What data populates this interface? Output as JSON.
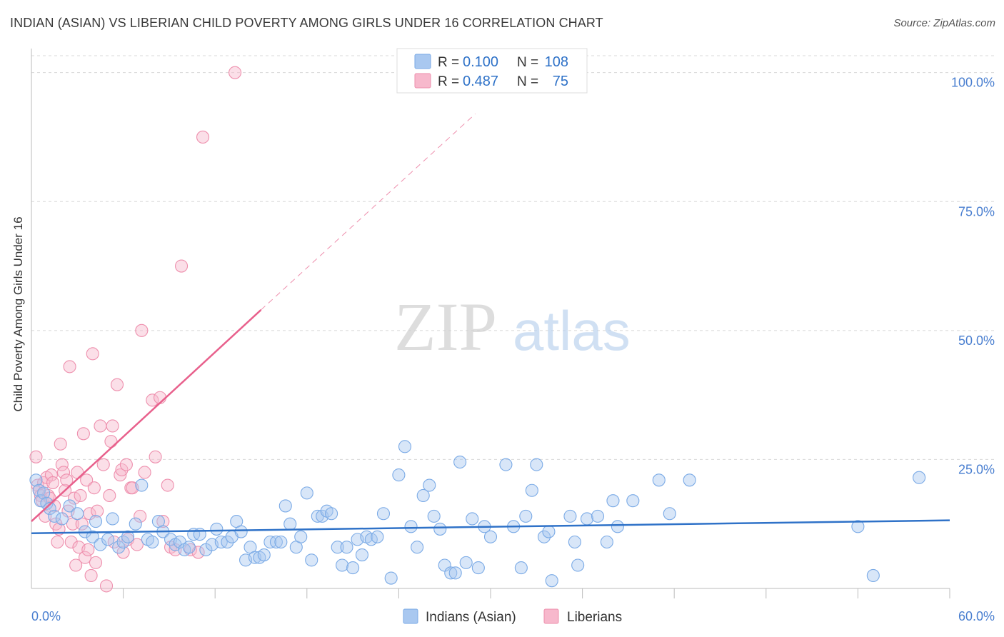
{
  "title": "INDIAN (ASIAN) VS LIBERIAN CHILD POVERTY AMONG GIRLS UNDER 16 CORRELATION CHART",
  "source": "Source: ZipAtlas.com",
  "watermark": {
    "zip": "ZIP",
    "atlas": "atlas"
  },
  "colors": {
    "indians_fill": "#a9c8f0",
    "indians_stroke": "#7aaae6",
    "indians_line": "#2f72c8",
    "liberians_fill": "#f7b8cc",
    "liberians_stroke": "#ee8fad",
    "liberians_line": "#e8608c",
    "tick_label": "#4a7fd0",
    "grid": "#d8d8d8"
  },
  "legend": {
    "r_label": "R =",
    "n_label": "N =",
    "rows": [
      {
        "r": "0.100",
        "n": "108"
      },
      {
        "r": "0.487",
        "n": "75"
      }
    ]
  },
  "chart_data": {
    "type": "scatter",
    "title": "INDIAN (ASIAN) VS LIBERIAN CHILD POVERTY AMONG GIRLS UNDER 16 CORRELATION CHART",
    "xlabel": "",
    "ylabel": "Child Poverty Among Girls Under 16",
    "xlim": [
      0,
      60
    ],
    "ylim": [
      0,
      103
    ],
    "x_tick_labels": [
      "0.0%",
      "60.0%"
    ],
    "y_ticks": [
      25,
      50,
      75,
      100
    ],
    "y_tick_labels": [
      "25.0%",
      "50.0%",
      "75.0%",
      "100.0%"
    ],
    "grid": true,
    "legend_position": "top-center",
    "series": [
      {
        "name": "Indians (Asian)",
        "r": 0.1,
        "n": 108,
        "trend": {
          "x": [
            0,
            60
          ],
          "y": [
            10.7,
            13.2
          ]
        },
        "points": [
          [
            0.3,
            21
          ],
          [
            0.5,
            19
          ],
          [
            0.6,
            17
          ],
          [
            0.8,
            18.5
          ],
          [
            1.0,
            16.5
          ],
          [
            1.2,
            15.5
          ],
          [
            1.5,
            14
          ],
          [
            2.0,
            13.5
          ],
          [
            2.5,
            16
          ],
          [
            3.0,
            14.5
          ],
          [
            3.5,
            11
          ],
          [
            4.0,
            10
          ],
          [
            4.2,
            13
          ],
          [
            4.5,
            8.5
          ],
          [
            5.0,
            9.5
          ],
          [
            5.3,
            13.5
          ],
          [
            5.7,
            8
          ],
          [
            6.0,
            9
          ],
          [
            6.3,
            10
          ],
          [
            6.8,
            12.5
          ],
          [
            7.2,
            20
          ],
          [
            7.6,
            9.5
          ],
          [
            7.9,
            9
          ],
          [
            8.3,
            13
          ],
          [
            8.6,
            11
          ],
          [
            9.1,
            9.5
          ],
          [
            9.4,
            8.5
          ],
          [
            9.7,
            9
          ],
          [
            10.0,
            7.5
          ],
          [
            10.3,
            8
          ],
          [
            10.6,
            10.5
          ],
          [
            11.0,
            10.5
          ],
          [
            11.4,
            7.5
          ],
          [
            11.8,
            8.5
          ],
          [
            12.1,
            11.5
          ],
          [
            12.4,
            9
          ],
          [
            12.8,
            9
          ],
          [
            13.1,
            10
          ],
          [
            13.4,
            13
          ],
          [
            13.7,
            11
          ],
          [
            14.0,
            5.5
          ],
          [
            14.3,
            8
          ],
          [
            14.6,
            6
          ],
          [
            14.9,
            6
          ],
          [
            15.2,
            6.5
          ],
          [
            15.6,
            9
          ],
          [
            16.0,
            9
          ],
          [
            16.3,
            9
          ],
          [
            16.6,
            16
          ],
          [
            16.9,
            12.5
          ],
          [
            17.3,
            8
          ],
          [
            17.6,
            10
          ],
          [
            18.0,
            18.5
          ],
          [
            18.3,
            5.5
          ],
          [
            18.7,
            14
          ],
          [
            19.0,
            14
          ],
          [
            19.3,
            15
          ],
          [
            19.6,
            14.5
          ],
          [
            20.0,
            8
          ],
          [
            20.3,
            4.5
          ],
          [
            20.6,
            8
          ],
          [
            21.0,
            4
          ],
          [
            21.3,
            9.5
          ],
          [
            21.6,
            6.5
          ],
          [
            21.9,
            10
          ],
          [
            22.2,
            9.5
          ],
          [
            22.6,
            10
          ],
          [
            23.0,
            14.5
          ],
          [
            23.5,
            2
          ],
          [
            24.0,
            22
          ],
          [
            24.4,
            27.5
          ],
          [
            24.8,
            12
          ],
          [
            25.2,
            8
          ],
          [
            25.6,
            18
          ],
          [
            26.0,
            20
          ],
          [
            26.3,
            14
          ],
          [
            26.7,
            11.5
          ],
          [
            27.0,
            4.5
          ],
          [
            27.4,
            3
          ],
          [
            27.7,
            3
          ],
          [
            28.0,
            24.5
          ],
          [
            28.4,
            5
          ],
          [
            28.8,
            13.5
          ],
          [
            29.2,
            4
          ],
          [
            29.6,
            12
          ],
          [
            30.0,
            10
          ],
          [
            31.0,
            24
          ],
          [
            31.5,
            12
          ],
          [
            32.0,
            4
          ],
          [
            32.3,
            14
          ],
          [
            32.7,
            19
          ],
          [
            33.0,
            24
          ],
          [
            33.5,
            10
          ],
          [
            33.8,
            11
          ],
          [
            34.0,
            1.5
          ],
          [
            35.2,
            14
          ],
          [
            35.5,
            9
          ],
          [
            35.7,
            4.5
          ],
          [
            36.3,
            13.5
          ],
          [
            37.0,
            14
          ],
          [
            37.6,
            9
          ],
          [
            38.0,
            17
          ],
          [
            38.3,
            12
          ],
          [
            39.3,
            17
          ],
          [
            41.0,
            21
          ],
          [
            41.7,
            14.5
          ],
          [
            43.0,
            21
          ],
          [
            54.0,
            12
          ],
          [
            55.0,
            2.5
          ],
          [
            58.0,
            21.5
          ]
        ]
      },
      {
        "name": "Liberians",
        "r": 0.487,
        "n": 75,
        "trend": {
          "x": [
            0,
            15
          ],
          "y": [
            13,
            54
          ]
        },
        "trend_extended": {
          "x": [
            15,
            29
          ],
          "y": [
            54,
            92
          ]
        },
        "points": [
          [
            0.3,
            25.5
          ],
          [
            0.4,
            20
          ],
          [
            0.5,
            19
          ],
          [
            0.6,
            18
          ],
          [
            0.7,
            17
          ],
          [
            0.8,
            20.5
          ],
          [
            0.9,
            14
          ],
          [
            1.0,
            21.5
          ],
          [
            1.1,
            18
          ],
          [
            1.2,
            17.5
          ],
          [
            1.3,
            22
          ],
          [
            1.4,
            20.5
          ],
          [
            1.5,
            16
          ],
          [
            1.6,
            12.5
          ],
          [
            1.7,
            9
          ],
          [
            1.8,
            11.5
          ],
          [
            1.9,
            28
          ],
          [
            2.0,
            24
          ],
          [
            2.1,
            22.5
          ],
          [
            2.2,
            19
          ],
          [
            2.3,
            21
          ],
          [
            2.4,
            15
          ],
          [
            2.5,
            43
          ],
          [
            2.6,
            9
          ],
          [
            2.7,
            12.5
          ],
          [
            2.8,
            17.5
          ],
          [
            2.9,
            4.5
          ],
          [
            3.0,
            22.5
          ],
          [
            3.1,
            8
          ],
          [
            3.2,
            18
          ],
          [
            3.3,
            12.5
          ],
          [
            3.4,
            30
          ],
          [
            3.5,
            6
          ],
          [
            3.6,
            21
          ],
          [
            3.7,
            7.5
          ],
          [
            3.8,
            14.5
          ],
          [
            3.9,
            2.5
          ],
          [
            4.0,
            45.5
          ],
          [
            4.1,
            19.5
          ],
          [
            4.2,
            5
          ],
          [
            4.3,
            15
          ],
          [
            4.5,
            31.5
          ],
          [
            4.7,
            24
          ],
          [
            4.9,
            0.5
          ],
          [
            5.1,
            18
          ],
          [
            5.2,
            28.5
          ],
          [
            5.3,
            31.5
          ],
          [
            5.4,
            9
          ],
          [
            5.6,
            39.5
          ],
          [
            5.8,
            22
          ],
          [
            5.9,
            23
          ],
          [
            6.0,
            7
          ],
          [
            6.2,
            24
          ],
          [
            6.3,
            9.5
          ],
          [
            6.5,
            19.5
          ],
          [
            6.6,
            19.5
          ],
          [
            6.9,
            8.5
          ],
          [
            7.1,
            14
          ],
          [
            7.2,
            50
          ],
          [
            7.4,
            22.5
          ],
          [
            7.9,
            36.5
          ],
          [
            8.1,
            25.5
          ],
          [
            8.4,
            37
          ],
          [
            8.6,
            13
          ],
          [
            8.9,
            20
          ],
          [
            9.1,
            8
          ],
          [
            9.4,
            7.5
          ],
          [
            9.8,
            62.5
          ],
          [
            10.4,
            7.5
          ],
          [
            10.9,
            7
          ],
          [
            11.2,
            87.5
          ],
          [
            13.3,
            100
          ]
        ]
      }
    ]
  }
}
